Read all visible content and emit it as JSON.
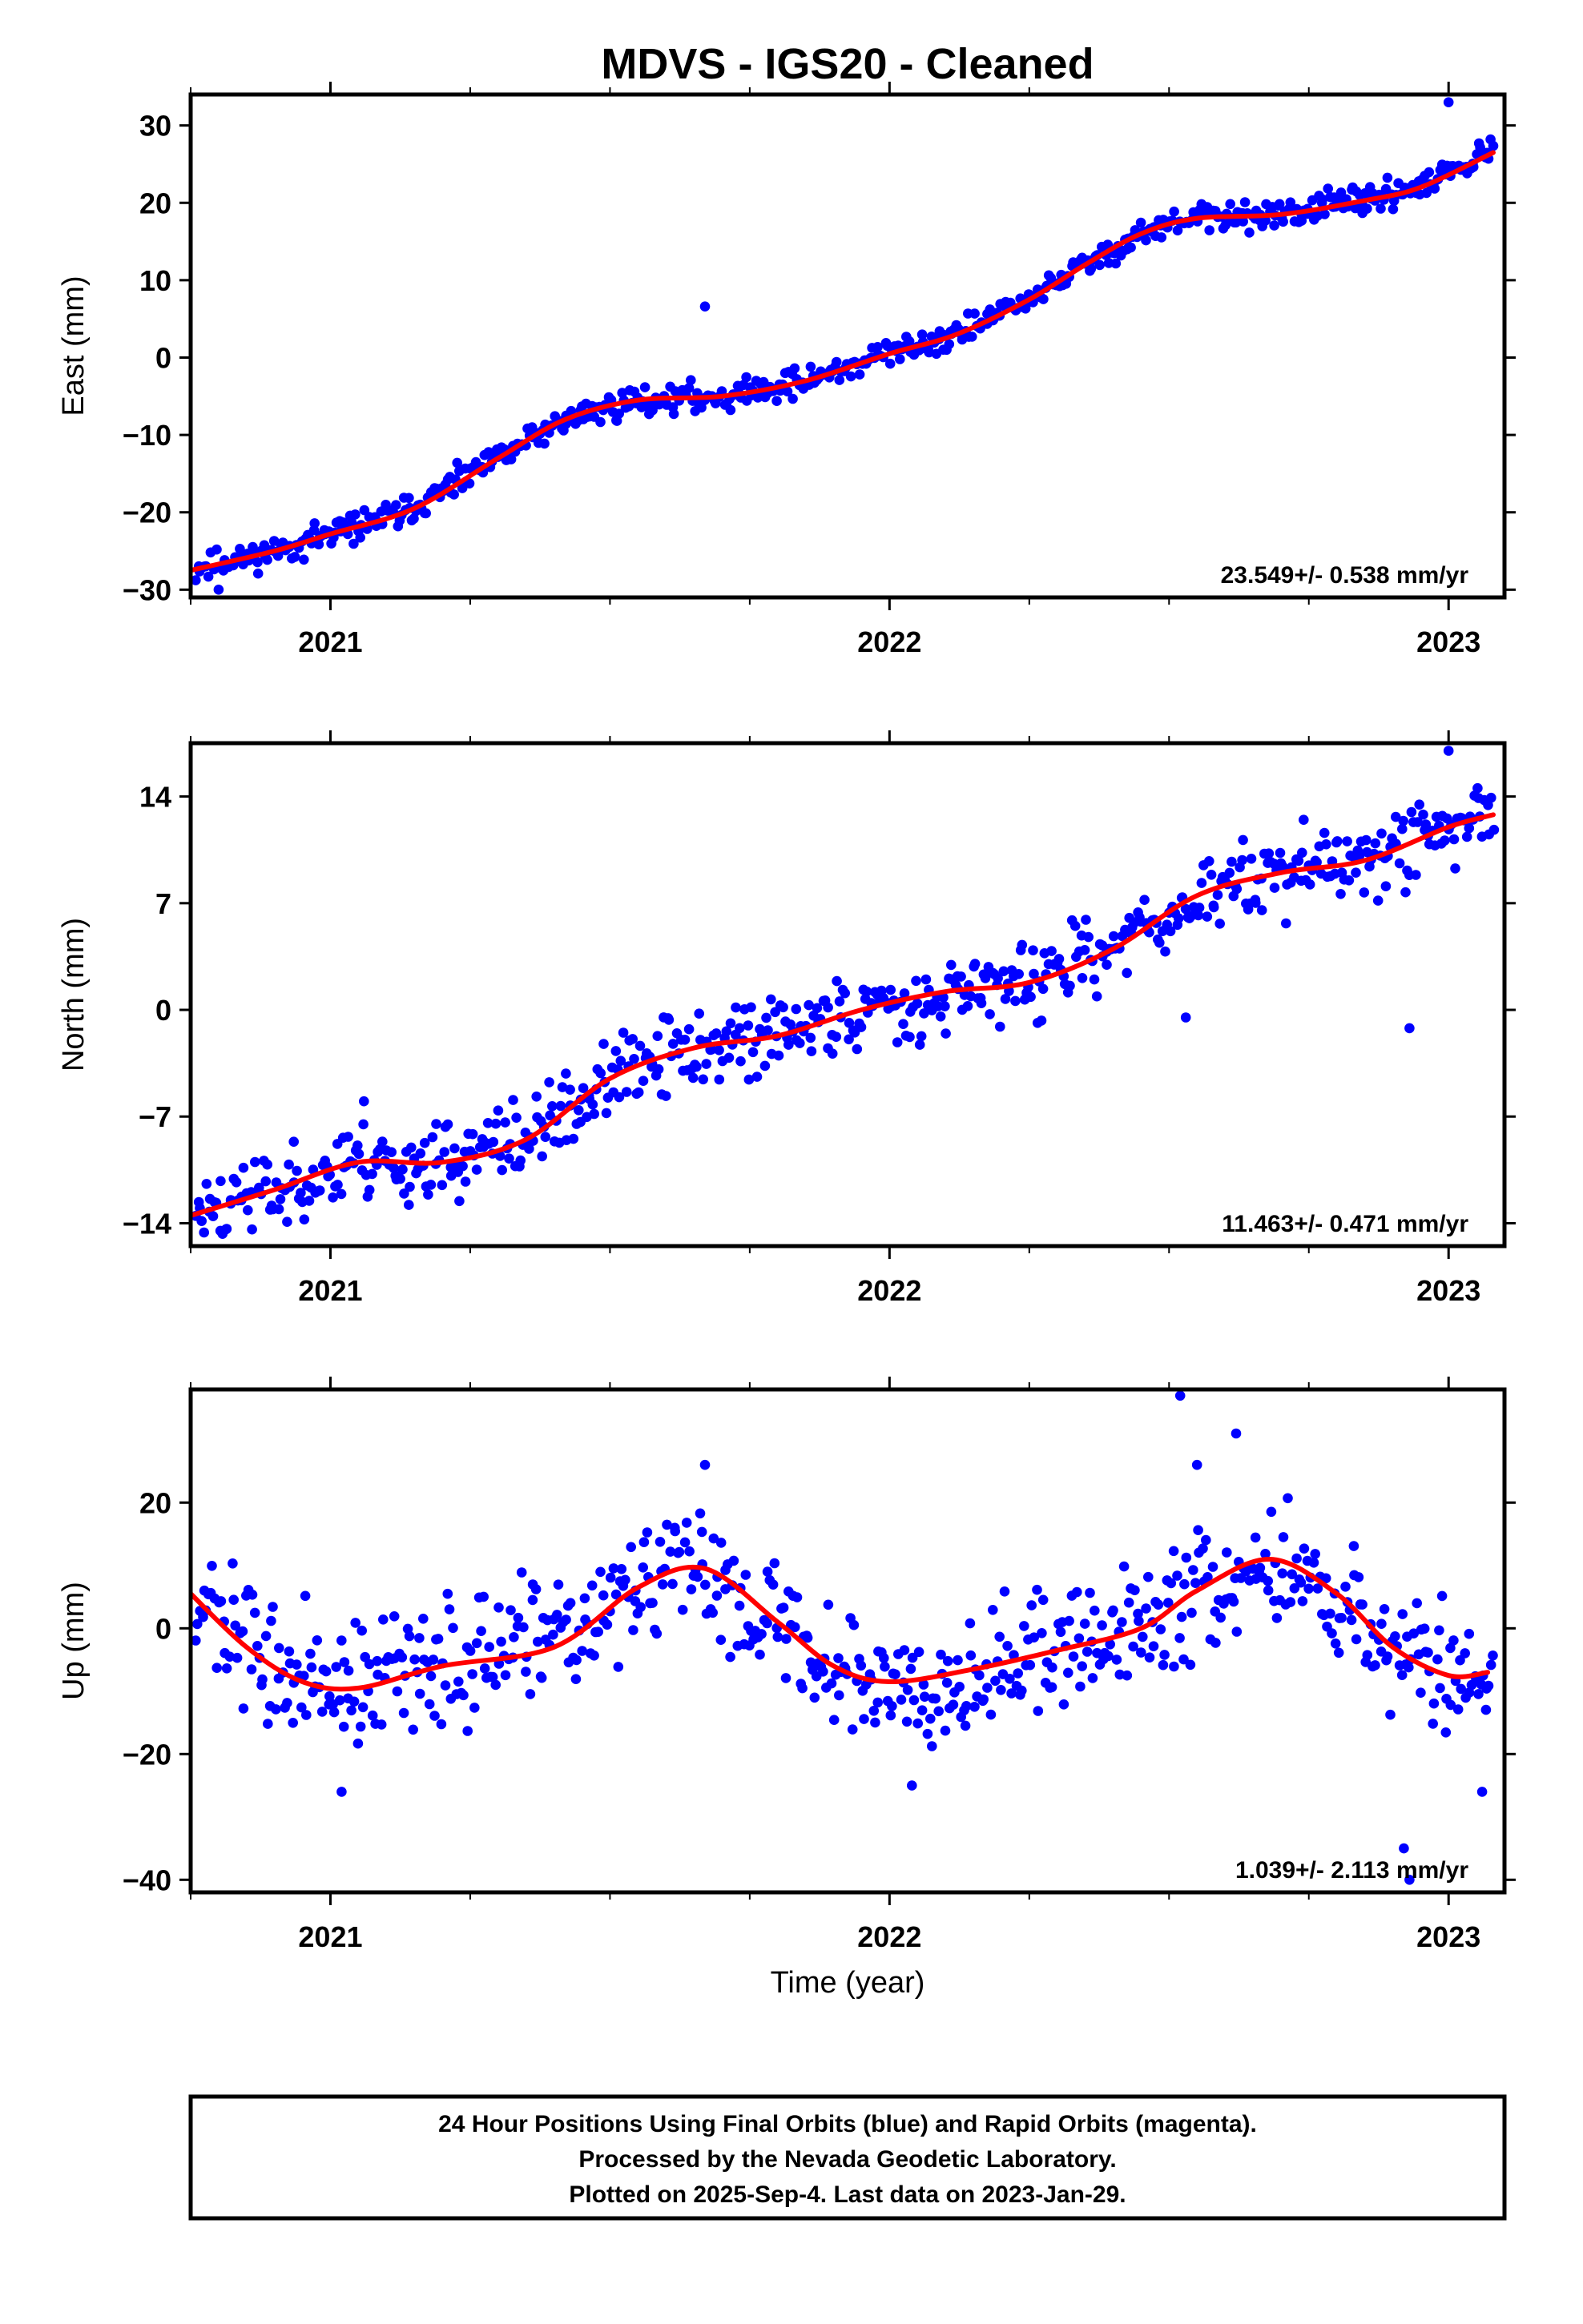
{
  "title": "MDVS  - IGS20 - Cleaned",
  "x_axis": {
    "label": "Time (year)",
    "range": [
      2020.75,
      2023.1
    ],
    "major_ticks": [
      2021,
      2022,
      2023
    ],
    "major_labels": [
      "2021",
      "2022",
      "2023"
    ],
    "minor_ticks": [
      2020.75,
      2021.25,
      2021.5,
      2021.75,
      2022.25,
      2022.5,
      2022.75
    ]
  },
  "colors": {
    "data": "#0000ff",
    "fit": "#ff0000",
    "frame": "#000000"
  },
  "chart_data": [
    {
      "type": "scatter",
      "ylabel": "East (mm)",
      "ylim": [
        -31,
        34
      ],
      "yticks": [
        -30,
        -20,
        -10,
        0,
        10,
        20,
        30
      ],
      "ytick_labels": [
        "−30",
        "−20",
        "−10",
        "0",
        "10",
        "20",
        "30"
      ],
      "rate": "23.549+/- 0.538 mm/yr",
      "data_amp": 1.0,
      "seed": 11,
      "outliers": [
        [
          2020.8,
          -30.0
        ],
        [
          2021.67,
          6.6
        ],
        [
          2023.0,
          33.0
        ]
      ],
      "fit": {
        "x": [
          2020.75,
          2020.9,
          2021.0,
          2021.15,
          2021.3,
          2021.42,
          2021.55,
          2021.7,
          2021.85,
          2022.0,
          2022.12,
          2022.25,
          2022.35,
          2022.45,
          2022.55,
          2022.7,
          2022.85,
          2022.95,
          2023.08
        ],
        "y": [
          -27.5,
          -25.0,
          -22.8,
          -19.5,
          -13.0,
          -8.0,
          -5.5,
          -5.0,
          -3.0,
          0.5,
          3.0,
          7.5,
          12.0,
          16.0,
          18.0,
          18.5,
          20.3,
          22.0,
          26.5
        ]
      }
    },
    {
      "type": "scatter",
      "ylabel": "North (mm)",
      "ylim": [
        -15.5,
        17.5
      ],
      "yticks": [
        -14,
        -7,
        0,
        7,
        14
      ],
      "ytick_labels": [
        "−14",
        "−7",
        "0",
        "7",
        "14"
      ],
      "rate": "11.463+/- 0.471 mm/yr",
      "data_amp": 1.4,
      "seed": 23,
      "outliers": [
        [
          2022.53,
          -0.5
        ],
        [
          2022.93,
          -1.2
        ],
        [
          2023.0,
          17.0
        ],
        [
          2021.06,
          -6.0
        ]
      ],
      "fit": {
        "x": [
          2020.75,
          2020.9,
          2021.05,
          2021.2,
          2021.35,
          2021.5,
          2021.65,
          2021.8,
          2021.95,
          2022.1,
          2022.25,
          2022.4,
          2022.55,
          2022.7,
          2022.85,
          2023.0,
          2023.08
        ],
        "y": [
          -13.5,
          -11.8,
          -10.0,
          -10.0,
          -8.5,
          -4.5,
          -2.5,
          -1.7,
          0.0,
          1.2,
          1.8,
          4.0,
          7.5,
          9.0,
          9.8,
          12.0,
          12.8
        ]
      }
    },
    {
      "type": "scatter",
      "ylabel": "Up (mm)",
      "ylim": [
        -42,
        38
      ],
      "yticks": [
        -40,
        -20,
        0,
        20
      ],
      "ytick_labels": [
        "−40",
        "−20",
        "0",
        "20"
      ],
      "rate": "1.039+/- 2.113 mm/yr",
      "data_amp": 5.5,
      "seed": 37,
      "outliers": [
        [
          2022.52,
          37.0
        ],
        [
          2022.62,
          31.0
        ],
        [
          2021.67,
          26.0
        ],
        [
          2022.55,
          26.0
        ],
        [
          2022.92,
          -35.0
        ],
        [
          2022.93,
          -40.0
        ],
        [
          2021.02,
          -26.0
        ],
        [
          2022.04,
          -25.0
        ],
        [
          2023.06,
          -26.0
        ]
      ],
      "fit": {
        "x": [
          2020.75,
          2020.85,
          2020.95,
          2021.05,
          2021.2,
          2021.4,
          2021.55,
          2021.67,
          2021.8,
          2021.9,
          2022.0,
          2022.15,
          2022.3,
          2022.45,
          2022.55,
          2022.68,
          2022.8,
          2022.9,
          2023.0,
          2023.07
        ],
        "y": [
          5.5,
          -3.0,
          -8.5,
          -9.5,
          -6.0,
          -3.0,
          6.5,
          9.5,
          1.0,
          -6.0,
          -8.5,
          -6.5,
          -3.5,
          0.0,
          6.0,
          11.0,
          5.5,
          -3.0,
          -7.5,
          -7.0
        ]
      }
    }
  ],
  "footer": {
    "line1": "24 Hour Positions Using Final Orbits (blue) and Rapid Orbits (magenta).",
    "line2": "Processed by the Nevada Geodetic Laboratory.",
    "line3": "Plotted on 2025-Sep-4. Last data on 2023-Jan-29."
  }
}
